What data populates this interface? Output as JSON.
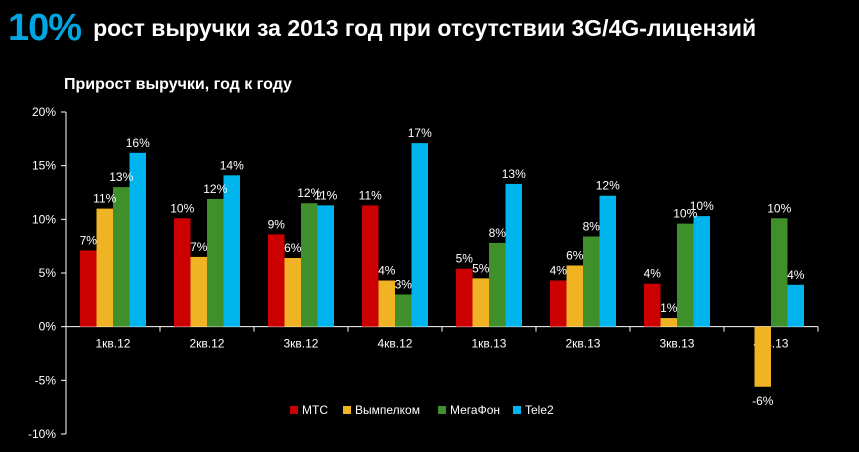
{
  "headline": {
    "percent": "10%",
    "text": "рост выручки за 2013 год при отсутствии 3G/4G-лицензий"
  },
  "chart_data": {
    "type": "bar",
    "title": "Прирост выручки, год к году",
    "xlabel": "",
    "ylabel": "",
    "ylim": [
      -10,
      20
    ],
    "y_ticks": [
      20,
      15,
      10,
      5,
      0,
      -5,
      -10
    ],
    "y_tick_labels": [
      "20%",
      "15%",
      "10%",
      "5%",
      "0%",
      "-5%",
      "-10%"
    ],
    "grid": false,
    "legend_position": "bottom",
    "categories": [
      "1кв.12",
      "2кв.12",
      "3кв.12",
      "4кв.12",
      "1кв.13",
      "2кв.13",
      "3кв.13",
      "4кв.13"
    ],
    "series": [
      {
        "name": "МТС",
        "color": "#cc0000",
        "values": [
          7.1,
          10.1,
          8.6,
          11.3,
          5.4,
          4.3,
          4.0,
          null
        ],
        "labels": [
          "7%",
          "10%",
          "9%",
          "11%",
          "5%",
          "4%",
          "4%",
          ""
        ]
      },
      {
        "name": "Вымпелком",
        "color": "#f0b323",
        "values": [
          11.0,
          6.5,
          6.4,
          4.3,
          4.5,
          5.7,
          0.8,
          -5.6
        ],
        "labels": [
          "11%",
          "7%",
          "6%",
          "4%",
          "5%",
          "6%",
          "1%",
          "-6%"
        ]
      },
      {
        "name": "МегаФон",
        "color": "#3f8f2a",
        "values": [
          13.0,
          11.9,
          11.5,
          3.0,
          7.8,
          8.4,
          9.6,
          10.1
        ],
        "labels": [
          "13%",
          "12%",
          "12%",
          "3%",
          "8%",
          "8%",
          "10%",
          "10%"
        ]
      },
      {
        "name": "Tele2",
        "color": "#00b4ee",
        "values": [
          16.2,
          14.1,
          11.3,
          17.1,
          13.3,
          12.2,
          10.3,
          3.9
        ],
        "labels": [
          "16%",
          "14%",
          "11%",
          "17%",
          "13%",
          "12%",
          "10%",
          "4%"
        ]
      }
    ]
  }
}
